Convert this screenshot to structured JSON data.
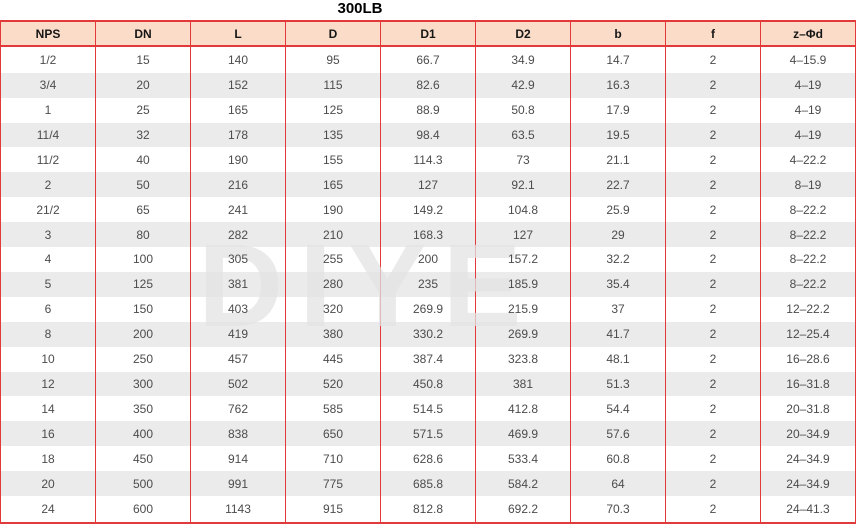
{
  "title": "300LB",
  "watermark_text": "DIYE",
  "colors": {
    "grid_red": "#e2393b",
    "header_bg": "#fadcc8",
    "alt_row_bg": "#ebebeb",
    "cell_text": "#4c4c4c",
    "watermark_gray": "#e3e3e3"
  },
  "table": {
    "columns": [
      "NPS",
      "DN",
      "L",
      "D",
      "D1",
      "D2",
      "b",
      "f",
      "z–Φd"
    ],
    "rows": [
      [
        "1/2",
        "15",
        "140",
        "95",
        "66.7",
        "34.9",
        "14.7",
        "2",
        "4–15.9"
      ],
      [
        "3/4",
        "20",
        "152",
        "115",
        "82.6",
        "42.9",
        "16.3",
        "2",
        "4–19"
      ],
      [
        "1",
        "25",
        "165",
        "125",
        "88.9",
        "50.8",
        "17.9",
        "2",
        "4–19"
      ],
      [
        "11/4",
        "32",
        "178",
        "135",
        "98.4",
        "63.5",
        "19.5",
        "2",
        "4–19"
      ],
      [
        "11/2",
        "40",
        "190",
        "155",
        "114.3",
        "73",
        "21.1",
        "2",
        "4–22.2"
      ],
      [
        "2",
        "50",
        "216",
        "165",
        "127",
        "92.1",
        "22.7",
        "2",
        "8–19"
      ],
      [
        "21/2",
        "65",
        "241",
        "190",
        "149.2",
        "104.8",
        "25.9",
        "2",
        "8–22.2"
      ],
      [
        "3",
        "80",
        "282",
        "210",
        "168.3",
        "127",
        "29",
        "2",
        "8–22.2"
      ],
      [
        "4",
        "100",
        "305",
        "255",
        "200",
        "157.2",
        "32.2",
        "2",
        "8–22.2"
      ],
      [
        "5",
        "125",
        "381",
        "280",
        "235",
        "185.9",
        "35.4",
        "2",
        "8–22.2"
      ],
      [
        "6",
        "150",
        "403",
        "320",
        "269.9",
        "215.9",
        "37",
        "2",
        "12–22.2"
      ],
      [
        "8",
        "200",
        "419",
        "380",
        "330.2",
        "269.9",
        "41.7",
        "2",
        "12–25.4"
      ],
      [
        "10",
        "250",
        "457",
        "445",
        "387.4",
        "323.8",
        "48.1",
        "2",
        "16–28.6"
      ],
      [
        "12",
        "300",
        "502",
        "520",
        "450.8",
        "381",
        "51.3",
        "2",
        "16–31.8"
      ],
      [
        "14",
        "350",
        "762",
        "585",
        "514.5",
        "412.8",
        "54.4",
        "2",
        "20–31.8"
      ],
      [
        "16",
        "400",
        "838",
        "650",
        "571.5",
        "469.9",
        "57.6",
        "2",
        "20–34.9"
      ],
      [
        "18",
        "450",
        "914",
        "710",
        "628.6",
        "533.4",
        "60.8",
        "2",
        "24–34.9"
      ],
      [
        "20",
        "500",
        "991",
        "775",
        "685.8",
        "584.2",
        "64",
        "2",
        "24–34.9"
      ],
      [
        "24",
        "600",
        "1143",
        "915",
        "812.8",
        "692.2",
        "70.3",
        "2",
        "24–41.3"
      ]
    ]
  }
}
